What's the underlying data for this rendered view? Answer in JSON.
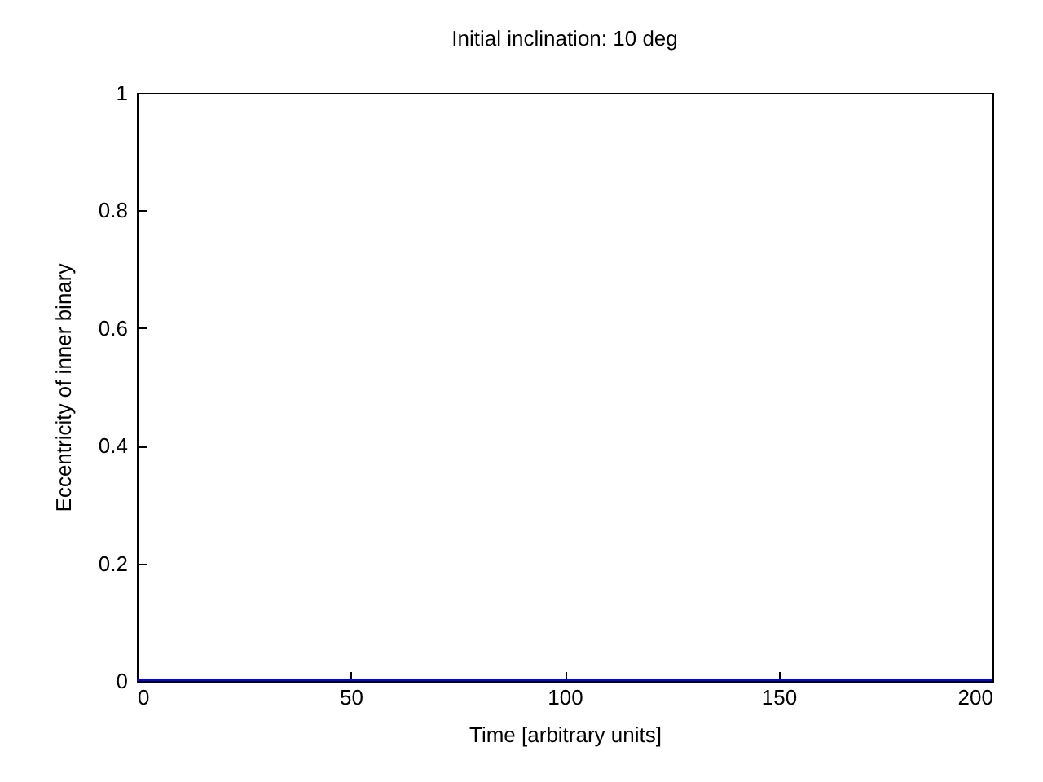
{
  "chart_data": {
    "type": "line",
    "title": "Initial inclination: 10 deg",
    "xlabel": "Time [arbitrary units]",
    "ylabel": "Eccentricity of inner binary",
    "x": [
      0,
      200
    ],
    "series": [
      {
        "color": "#0000ff",
        "values": [
          0,
          0
        ]
      }
    ],
    "xlim": [
      0,
      200
    ],
    "xticks": [
      0,
      50,
      100,
      150,
      200
    ],
    "ylim": [
      0,
      1
    ],
    "yticks": [
      0,
      0.2,
      0.4,
      0.6,
      0.8,
      1
    ],
    "grid": false,
    "legend": false,
    "marker": "none",
    "line_style": "solid"
  }
}
